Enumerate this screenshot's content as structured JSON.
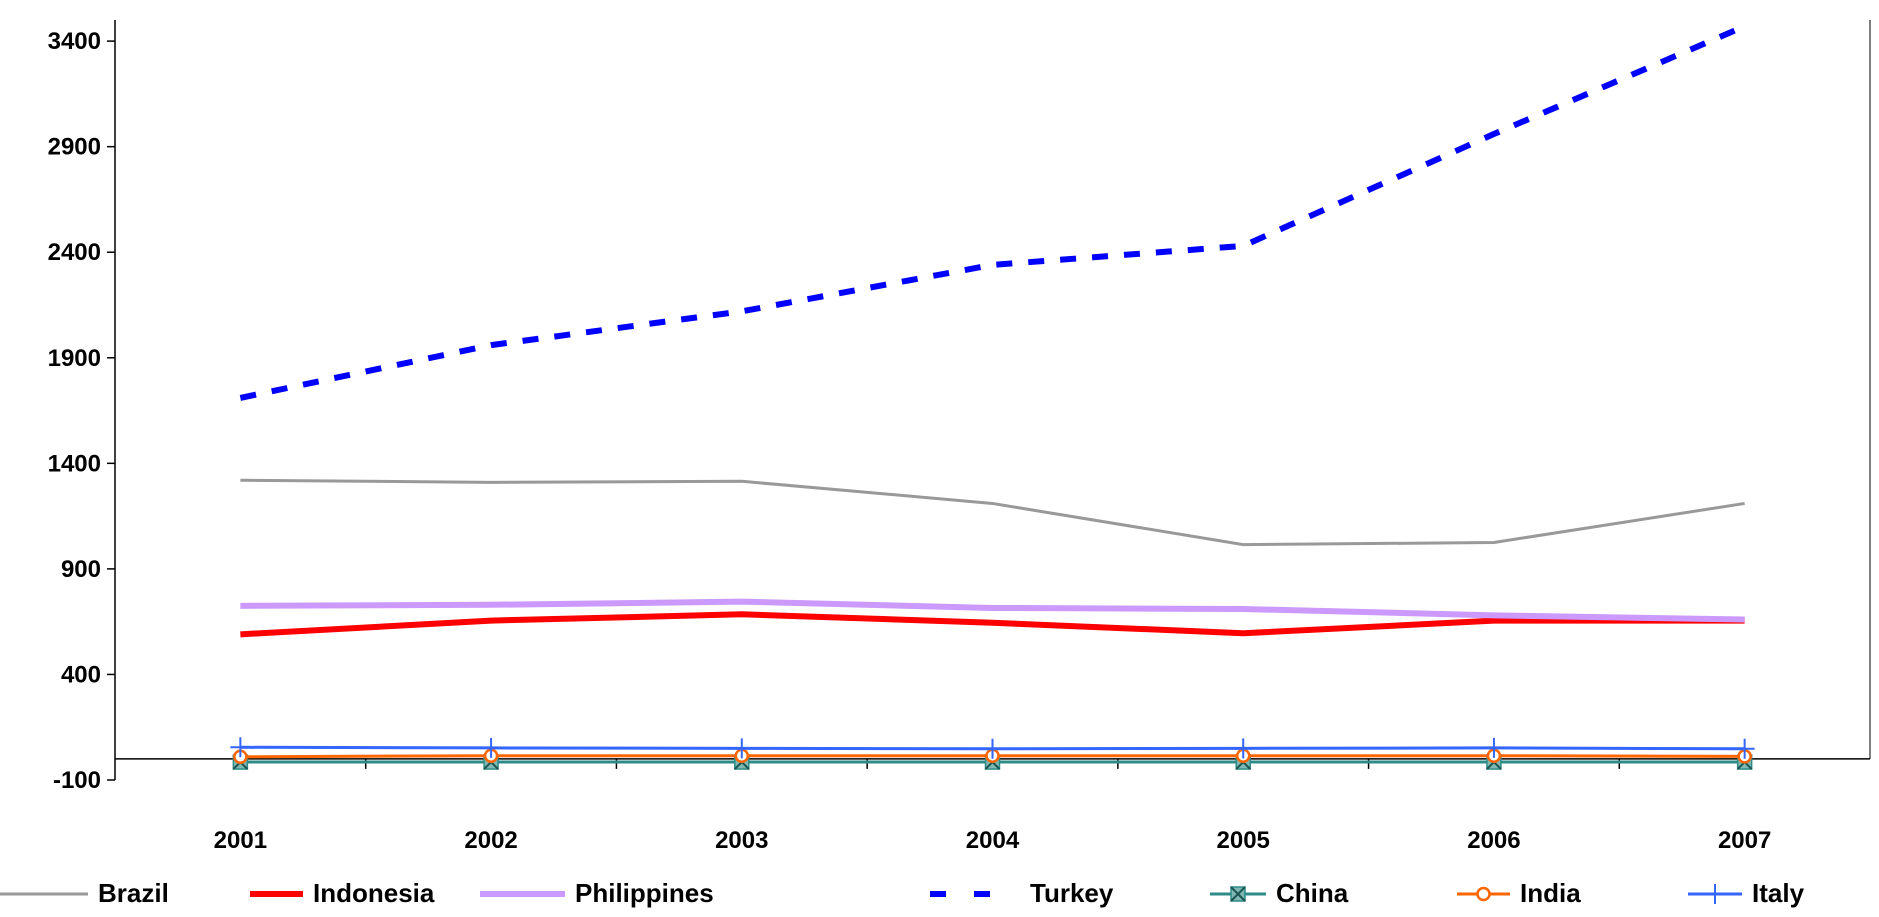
{
  "chart_data": {
    "type": "line",
    "title": "",
    "xlabel": "",
    "ylabel": "",
    "categories": [
      "2001",
      "2002",
      "2003",
      "2004",
      "2005",
      "2006",
      "2007"
    ],
    "ylim": [
      -100,
      3500
    ],
    "yticks": [
      -100,
      400,
      900,
      1400,
      1900,
      2400,
      2900,
      3400
    ],
    "y_tick_labels": [
      "-100",
      "400",
      "900",
      "1400",
      "1900",
      "2400",
      "2900",
      "3400"
    ],
    "grid": false,
    "legend_position": "bottom",
    "series": [
      {
        "name": "Brazil",
        "values": [
          1320,
          1310,
          1315,
          1210,
          1015,
          1025,
          1210
        ],
        "color": "#999999",
        "style": "solid",
        "marker": "none"
      },
      {
        "name": "Indonesia",
        "values": [
          590,
          655,
          685,
          645,
          595,
          655,
          655
        ],
        "color": "#ff0000",
        "style": "solid-thick",
        "marker": "none"
      },
      {
        "name": "Philippines",
        "values": [
          725,
          730,
          745,
          715,
          710,
          680,
          660
        ],
        "color": "#cc99ff",
        "style": "solid-thick",
        "marker": "none"
      },
      {
        "name": "Turkey",
        "values": [
          1710,
          1960,
          2120,
          2340,
          2430,
          2960,
          3470
        ],
        "color": "#0000ff",
        "style": "dashed",
        "marker": "none"
      },
      {
        "name": "China",
        "values": [
          -15,
          -15,
          -15,
          -15,
          -15,
          -15,
          -15
        ],
        "color": "#2e8b87",
        "style": "solid",
        "marker": "x"
      },
      {
        "name": "India",
        "values": [
          10,
          15,
          15,
          15,
          15,
          15,
          12
        ],
        "color": "#ff6600",
        "style": "solid",
        "marker": "circle"
      },
      {
        "name": "Italy",
        "values": [
          55,
          52,
          50,
          48,
          50,
          52,
          48
        ],
        "color": "#3366ff",
        "style": "solid",
        "marker": "plus"
      }
    ]
  }
}
